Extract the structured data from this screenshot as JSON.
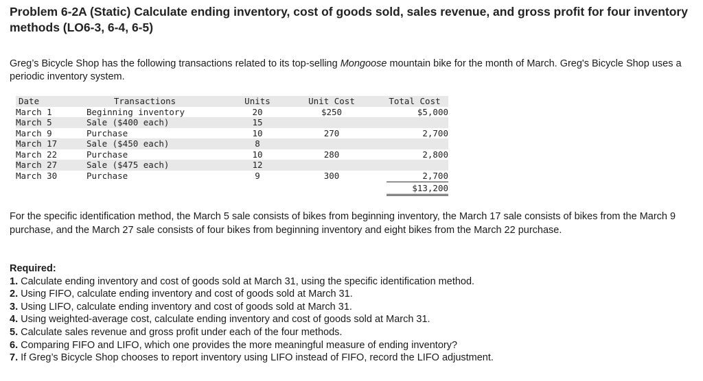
{
  "title": "Problem 6-2A (Static) Calculate ending inventory, cost of goods sold, sales revenue, and gross profit for four inventory methods (LO6-3, 6-4, 6-5)",
  "intro": {
    "before": "Greg’s Bicycle Shop has the following transactions related to its top-selling ",
    "italic": "Mongoose",
    "after": " mountain bike for the month of March. Greg's Bicycle Shop uses a periodic inventory system."
  },
  "table": {
    "headers": {
      "date": "Date",
      "transactions": "Transactions",
      "units": "Units",
      "unit_cost": "Unit Cost",
      "total_cost": "Total Cost"
    },
    "rows": [
      {
        "date": "March 1",
        "transaction": "Beginning inventory",
        "units": "20",
        "unit_cost": "$250",
        "total_cost": "$5,000"
      },
      {
        "date": "March 5",
        "transaction": "Sale ($400 each)",
        "units": "15",
        "unit_cost": "",
        "total_cost": ""
      },
      {
        "date": "March 9",
        "transaction": "Purchase",
        "units": "10",
        "unit_cost": "270",
        "total_cost": "2,700"
      },
      {
        "date": "March 17",
        "transaction": "Sale ($450 each)",
        "units": "8",
        "unit_cost": "",
        "total_cost": ""
      },
      {
        "date": "March 22",
        "transaction": "Purchase",
        "units": "10",
        "unit_cost": "280",
        "total_cost": "2,800"
      },
      {
        "date": "March 27",
        "transaction": "Sale ($475 each)",
        "units": "12",
        "unit_cost": "",
        "total_cost": ""
      },
      {
        "date": "March 30",
        "transaction": "Purchase",
        "units": "9",
        "unit_cost": "300",
        "total_cost": "2,700"
      }
    ],
    "total": "$13,200"
  },
  "paragraph": "For the specific identification method, the March 5 sale consists of bikes from beginning inventory, the March 17 sale consists of bikes from the March 9 purchase, and the March 27 sale consists of four bikes from beginning inventory and eight bikes from the March 22 purchase.",
  "required": {
    "heading": "Required:",
    "items": [
      {
        "num": "1.",
        "text": " Calculate ending inventory and cost of goods sold at March 31, using the specific identification method."
      },
      {
        "num": "2.",
        "text": " Using FIFO, calculate ending inventory and cost of goods sold at March 31."
      },
      {
        "num": "3.",
        "text": " Using LIFO, calculate ending inventory and cost of goods sold at March 31."
      },
      {
        "num": "4.",
        "text": " Using weighted-average cost, calculate ending inventory and cost of goods sold at March 31."
      },
      {
        "num": "5.",
        "text": " Calculate sales revenue and gross profit under each of the four methods."
      },
      {
        "num": "6.",
        "text": " Comparing FIFO and LIFO, which one provides the more meaningful measure of ending inventory?"
      },
      {
        "num": "7.",
        "text": " If Greg’s Bicycle Shop chooses to report inventory using LIFO instead of FIFO, record the LIFO adjustment."
      }
    ]
  }
}
